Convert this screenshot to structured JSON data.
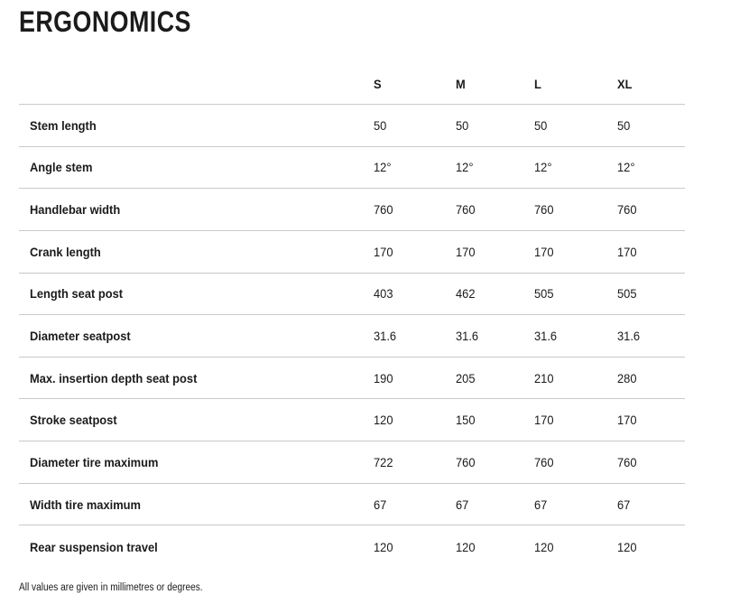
{
  "page": {
    "title": "ERGONOMICS",
    "footnote": "All values are given in millimetres or degrees."
  },
  "table": {
    "columns": [
      "S",
      "M",
      "L",
      "XL"
    ],
    "rows": [
      {
        "label": "Stem length",
        "values": [
          "50",
          "50",
          "50",
          "50"
        ]
      },
      {
        "label": "Angle stem",
        "values": [
          "12°",
          "12°",
          "12°",
          "12°"
        ]
      },
      {
        "label": "Handlebar width",
        "values": [
          "760",
          "760",
          "760",
          "760"
        ]
      },
      {
        "label": "Crank length",
        "values": [
          "170",
          "170",
          "170",
          "170"
        ]
      },
      {
        "label": "Length seat post",
        "values": [
          "403",
          "462",
          "505",
          "505"
        ]
      },
      {
        "label": "Diameter seatpost",
        "values": [
          "31.6",
          "31.6",
          "31.6",
          "31.6"
        ]
      },
      {
        "label": "Max. insertion depth seat post",
        "values": [
          "190",
          "205",
          "210",
          "280"
        ]
      },
      {
        "label": "Stroke seatpost",
        "values": [
          "120",
          "150",
          "170",
          "170"
        ]
      },
      {
        "label": "Diameter tire maximum",
        "values": [
          "722",
          "760",
          "760",
          "760"
        ]
      },
      {
        "label": "Width tire maximum",
        "values": [
          "67",
          "67",
          "67",
          "67"
        ]
      },
      {
        "label": "Rear suspension travel",
        "values": [
          "120",
          "120",
          "120",
          "120"
        ]
      }
    ]
  },
  "colors": {
    "text": "#1b1b1b",
    "divider": "#c9c9c9",
    "background": "#ffffff"
  }
}
